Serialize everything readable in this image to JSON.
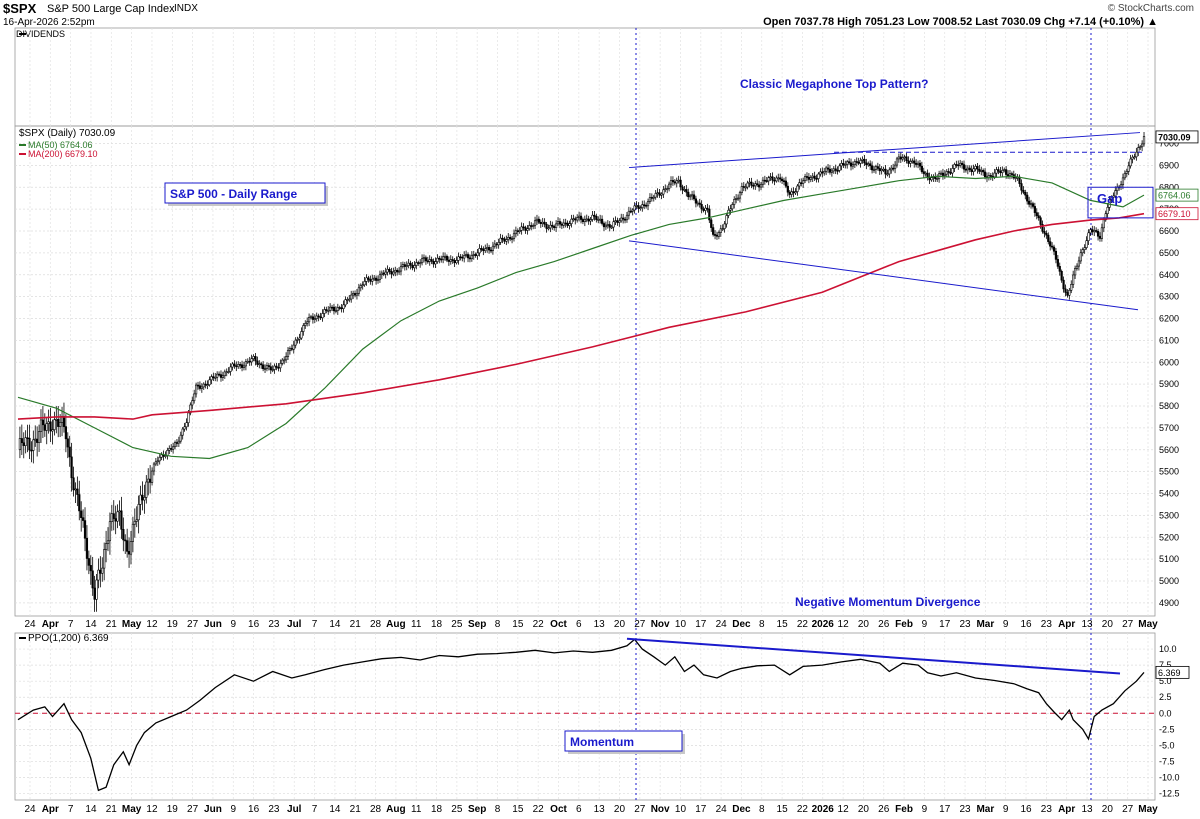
{
  "header": {
    "symbol": "$SPX",
    "name": "S&P 500 Large Cap Index",
    "exchange": "INDX",
    "date": "16-Apr-2026 2:52pm",
    "credit": "© StockCharts.com",
    "ohlc": "Open 7037.78  High 7051.23  Low 7008.52  Last 7030.09  Chg +7.14 (+0.10%) ▲",
    "dividends_label": "DIVIDENDS"
  },
  "legend": {
    "price": "$SPX (Daily) 7030.09",
    "ma50": "MA(50) 6764.06",
    "ma200": "MA(200) 6679.10",
    "ppo": "PPO(1,200) 6.369"
  },
  "annotations": {
    "megaphone": "Classic Megaphone Top Pattern?",
    "daily_range": "S&P 500 - Daily Range",
    "gap": "Gap",
    "divergence": "Negative Momentum Divergence",
    "momentum": "Momentum"
  },
  "colors": {
    "ma50": "#2a7a2a",
    "ma200": "#cc1133",
    "annotation": "#1a1acc",
    "ppo_zero": "#cc1133"
  },
  "chart_data": [
    {
      "type": "candlestick",
      "title": "$SPX (Daily)",
      "x_axis_labels": [
        "24",
        "Apr",
        "7",
        "14",
        "21",
        "May",
        "12",
        "19",
        "27",
        "Jun",
        "9",
        "16",
        "23",
        "Jul",
        "7",
        "14",
        "21",
        "28",
        "Aug",
        "11",
        "18",
        "25",
        "Sep",
        "8",
        "15",
        "22",
        "Oct",
        "6",
        "13",
        "20",
        "27",
        "Nov",
        "10",
        "17",
        "24",
        "Dec",
        "8",
        "15",
        "22",
        "2026",
        "12",
        "20",
        "26",
        "Feb",
        "9",
        "17",
        "23",
        "Mar",
        "9",
        "16",
        "23",
        "Apr",
        "13",
        "20",
        "27",
        "May"
      ],
      "y_ticks": [
        4900,
        5000,
        5100,
        5200,
        5300,
        5400,
        5500,
        5600,
        5700,
        5800,
        5900,
        6000,
        6100,
        6200,
        6300,
        6400,
        6500,
        6600,
        6700,
        6800,
        6900,
        7000
      ],
      "ylim": [
        4840,
        7080
      ],
      "price_path": [
        [
          0,
          5600
        ],
        [
          10,
          5660
        ],
        [
          18,
          5740
        ],
        [
          25,
          5680
        ],
        [
          30,
          5400
        ],
        [
          36,
          5150
        ],
        [
          40,
          4940
        ],
        [
          44,
          5060
        ],
        [
          48,
          5300
        ],
        [
          53,
          5270
        ],
        [
          57,
          5150
        ],
        [
          62,
          5280
        ],
        [
          67,
          5460
        ],
        [
          73,
          5550
        ],
        [
          78,
          5600
        ],
        [
          83,
          5620
        ],
        [
          88,
          5740
        ],
        [
          93,
          5880
        ],
        [
          103,
          5930
        ],
        [
          113,
          5980
        ],
        [
          123,
          6010
        ],
        [
          133,
          5960
        ],
        [
          143,
          6060
        ],
        [
          150,
          6180
        ],
        [
          160,
          6230
        ],
        [
          170,
          6260
        ],
        [
          180,
          6360
        ],
        [
          190,
          6400
        ],
        [
          200,
          6430
        ],
        [
          210,
          6460
        ],
        [
          220,
          6470
        ],
        [
          230,
          6470
        ],
        [
          240,
          6500
        ],
        [
          250,
          6540
        ],
        [
          260,
          6590
        ],
        [
          270,
          6640
        ],
        [
          280,
          6620
        ],
        [
          290,
          6650
        ],
        [
          300,
          6660
        ],
        [
          310,
          6620
        ],
        [
          320,
          6690
        ],
        [
          330,
          6740
        ],
        [
          340,
          6810
        ],
        [
          345,
          6830
        ],
        [
          350,
          6760
        ],
        [
          355,
          6730
        ],
        [
          360,
          6690
        ],
        [
          363,
          6570
        ],
        [
          368,
          6620
        ],
        [
          373,
          6720
        ],
        [
          378,
          6800
        ],
        [
          388,
          6820
        ],
        [
          398,
          6850
        ],
        [
          403,
          6760
        ],
        [
          408,
          6820
        ],
        [
          418,
          6860
        ],
        [
          428,
          6890
        ],
        [
          438,
          6920
        ],
        [
          448,
          6890
        ],
        [
          453,
          6860
        ],
        [
          460,
          6930
        ],
        [
          468,
          6920
        ],
        [
          473,
          6860
        ],
        [
          480,
          6840
        ],
        [
          490,
          6900
        ],
        [
          500,
          6880
        ],
        [
          508,
          6850
        ],
        [
          515,
          6880
        ],
        [
          522,
          6830
        ],
        [
          530,
          6700
        ],
        [
          537,
          6580
        ],
        [
          542,
          6470
        ],
        [
          545,
          6380
        ],
        [
          548,
          6300
        ],
        [
          555,
          6500
        ],
        [
          560,
          6600
        ],
        [
          565,
          6580
        ],
        [
          568,
          6690
        ],
        [
          573,
          6780
        ],
        [
          578,
          6860
        ],
        [
          585,
          6980
        ],
        [
          588,
          7030
        ]
      ],
      "ma50_path": [
        [
          0,
          5840
        ],
        [
          20,
          5790
        ],
        [
          40,
          5700
        ],
        [
          60,
          5610
        ],
        [
          80,
          5570
        ],
        [
          100,
          5560
        ],
        [
          120,
          5610
        ],
        [
          140,
          5720
        ],
        [
          160,
          5880
        ],
        [
          180,
          6060
        ],
        [
          200,
          6190
        ],
        [
          220,
          6280
        ],
        [
          240,
          6340
        ],
        [
          260,
          6410
        ],
        [
          280,
          6460
        ],
        [
          300,
          6520
        ],
        [
          320,
          6580
        ],
        [
          340,
          6630
        ],
        [
          360,
          6660
        ],
        [
          380,
          6700
        ],
        [
          400,
          6740
        ],
        [
          420,
          6770
        ],
        [
          440,
          6800
        ],
        [
          460,
          6830
        ],
        [
          480,
          6850
        ],
        [
          500,
          6840
        ],
        [
          520,
          6850
        ],
        [
          540,
          6820
        ],
        [
          560,
          6740
        ],
        [
          577,
          6710
        ],
        [
          588,
          6764
        ]
      ],
      "ma200_path": [
        [
          0,
          5740
        ],
        [
          20,
          5750
        ],
        [
          40,
          5750
        ],
        [
          60,
          5740
        ],
        [
          70,
          5760
        ],
        [
          100,
          5780
        ],
        [
          140,
          5810
        ],
        [
          180,
          5860
        ],
        [
          220,
          5920
        ],
        [
          260,
          5990
        ],
        [
          300,
          6070
        ],
        [
          340,
          6160
        ],
        [
          380,
          6230
        ],
        [
          420,
          6320
        ],
        [
          440,
          6390
        ],
        [
          460,
          6460
        ],
        [
          480,
          6510
        ],
        [
          500,
          6560
        ],
        [
          520,
          6600
        ],
        [
          540,
          6630
        ],
        [
          560,
          6650
        ],
        [
          575,
          6660
        ],
        [
          588,
          6679
        ]
      ],
      "trend_upper": [
        [
          320,
          6890
        ],
        [
          588,
          7050
        ]
      ],
      "trend_lower": [
        [
          320,
          6555
        ],
        [
          588,
          6240
        ]
      ],
      "gap_range": [
        6660,
        6800
      ],
      "resistance_level": 6960,
      "last_value_labels": [
        7030.09,
        6764.06,
        6679.1
      ]
    },
    {
      "type": "line",
      "title": "PPO(1,200)",
      "y_ticks": [
        -12.5,
        -10,
        -7.5,
        -5,
        -2.5,
        0,
        2.5,
        5,
        7.5,
        10
      ],
      "ylim": [
        -13.5,
        12.5
      ],
      "ppo_path": [
        [
          0,
          -1
        ],
        [
          8,
          0.5
        ],
        [
          14,
          1
        ],
        [
          18,
          -0.5
        ],
        [
          24,
          1.5
        ],
        [
          28,
          -1
        ],
        [
          33,
          -3
        ],
        [
          38,
          -7
        ],
        [
          42,
          -12
        ],
        [
          46,
          -11.5
        ],
        [
          50,
          -8
        ],
        [
          55,
          -6
        ],
        [
          58,
          -8
        ],
        [
          62,
          -5
        ],
        [
          66,
          -3
        ],
        [
          72,
          -1.5
        ],
        [
          80,
          -0.5
        ],
        [
          88,
          0.5
        ],
        [
          95,
          2
        ],
        [
          103,
          4
        ],
        [
          113,
          6
        ],
        [
          123,
          5
        ],
        [
          133,
          6.5
        ],
        [
          143,
          5.5
        ],
        [
          150,
          6
        ],
        [
          160,
          6.8
        ],
        [
          170,
          7.5
        ],
        [
          180,
          8
        ],
        [
          190,
          8.5
        ],
        [
          200,
          8.7
        ],
        [
          210,
          8.3
        ],
        [
          220,
          9
        ],
        [
          230,
          8.8
        ],
        [
          240,
          9.2
        ],
        [
          250,
          9.3
        ],
        [
          260,
          9.5
        ],
        [
          270,
          9.8
        ],
        [
          280,
          9.4
        ],
        [
          290,
          9.7
        ],
        [
          300,
          9.5
        ],
        [
          310,
          9.8
        ],
        [
          318,
          10.5
        ],
        [
          322,
          11.5
        ],
        [
          326,
          10
        ],
        [
          332,
          8.8
        ],
        [
          338,
          7.5
        ],
        [
          343,
          8.8
        ],
        [
          348,
          6.5
        ],
        [
          353,
          7.5
        ],
        [
          358,
          6
        ],
        [
          365,
          5.5
        ],
        [
          372,
          6.5
        ],
        [
          378,
          7
        ],
        [
          386,
          7.4
        ],
        [
          395,
          7.5
        ],
        [
          403,
          6
        ],
        [
          410,
          7.3
        ],
        [
          420,
          7.5
        ],
        [
          430,
          8
        ],
        [
          440,
          8.4
        ],
        [
          450,
          7.8
        ],
        [
          455,
          6.5
        ],
        [
          462,
          7.8
        ],
        [
          470,
          7.5
        ],
        [
          475,
          6.3
        ],
        [
          482,
          5.8
        ],
        [
          490,
          6.3
        ],
        [
          500,
          5.5
        ],
        [
          510,
          5.1
        ],
        [
          520,
          4.6
        ],
        [
          527,
          3.8
        ],
        [
          533,
          3.2
        ],
        [
          537,
          1.5
        ],
        [
          541,
          0.2
        ],
        [
          545,
          -1
        ],
        [
          549,
          0.5
        ],
        [
          551,
          -1
        ],
        [
          556,
          -2.5
        ],
        [
          559,
          -4
        ],
        [
          562,
          -0.5
        ],
        [
          566,
          0.5
        ],
        [
          572,
          1.5
        ],
        [
          578,
          3.5
        ],
        [
          584,
          5
        ],
        [
          588,
          6.369
        ]
      ],
      "trend_path": [
        [
          318,
          11.6
        ],
        [
          605,
          6.2
        ]
      ],
      "zero_line": 0,
      "last_value": 6.369
    }
  ]
}
